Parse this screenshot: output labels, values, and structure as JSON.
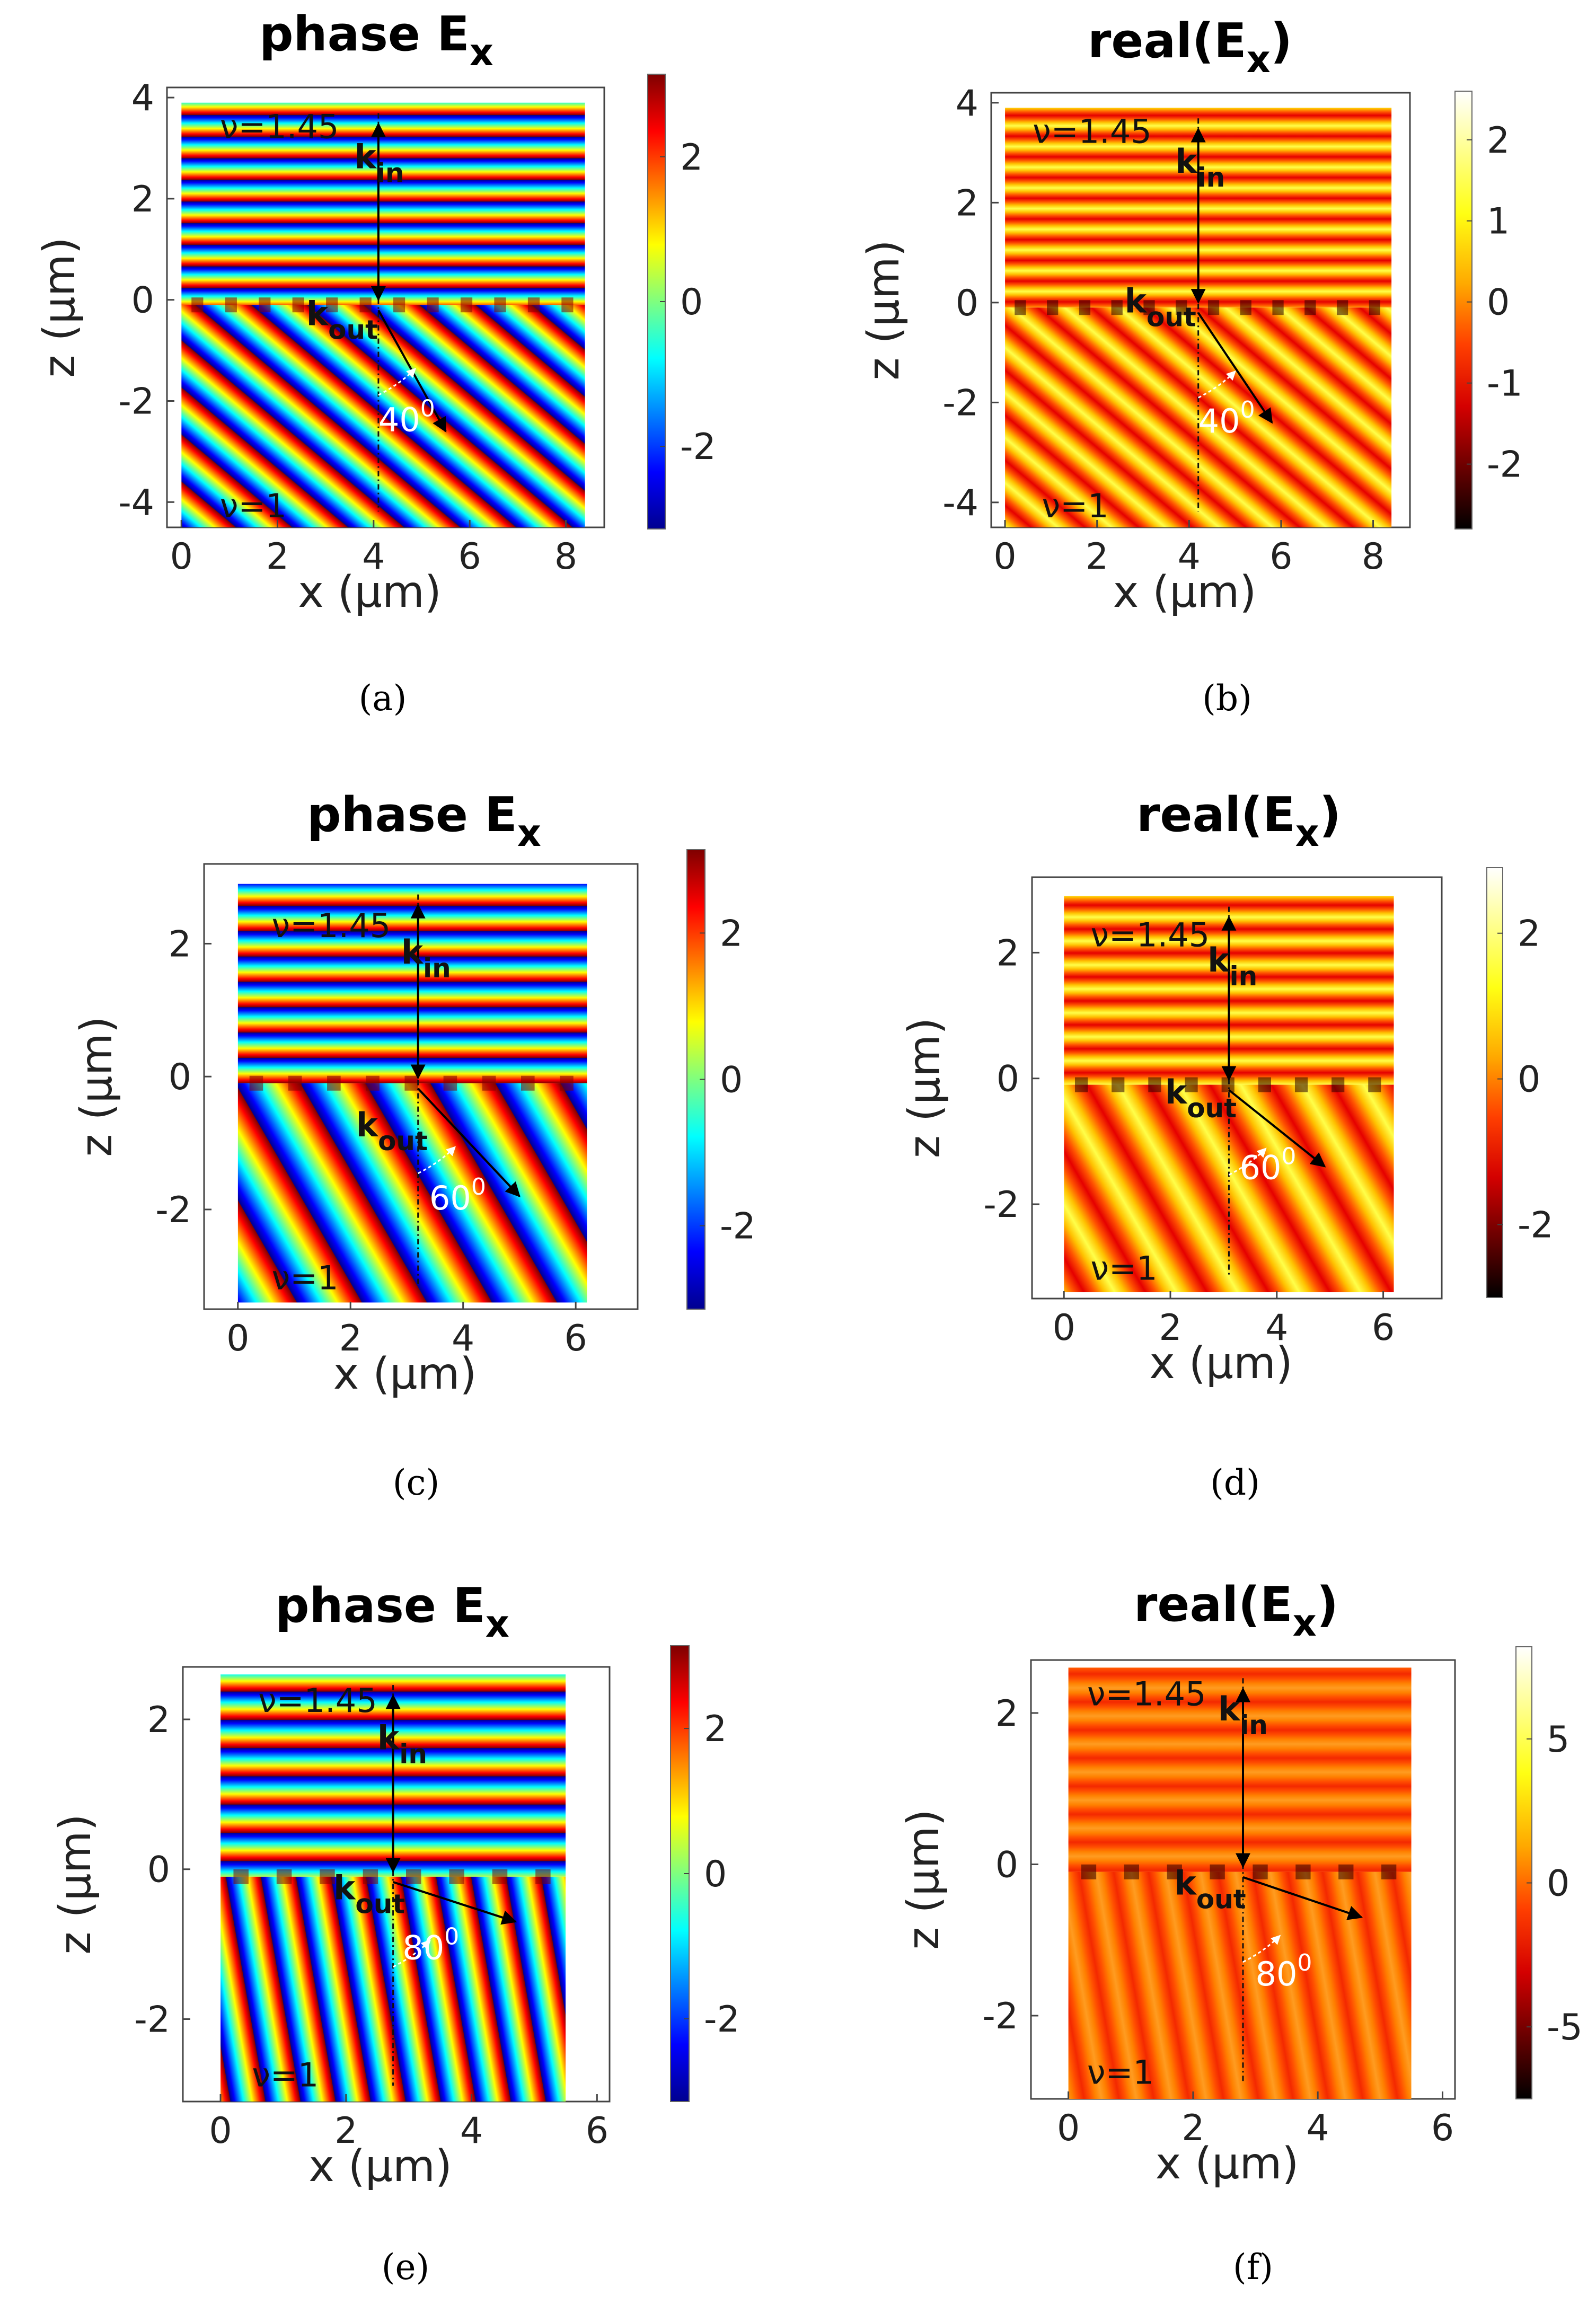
{
  "colormaps": {
    "jet": [
      "#00008f",
      "#0000ff",
      "#007fff",
      "#00ffff",
      "#7fff7f",
      "#ffff00",
      "#ff7f00",
      "#ff0000",
      "#7f0000"
    ],
    "hot": [
      "#000000",
      "#6a0000",
      "#d40000",
      "#ff3f00",
      "#ffa900",
      "#ffff13",
      "#ffff89",
      "#ffffff"
    ]
  },
  "chart_data": [
    {
      "id": "a",
      "caption": "(a)",
      "type": "heatmap",
      "colormap": "jet",
      "title_main": "phase E",
      "title_sub": "x",
      "xlabel": "x (μm)",
      "ylabel": "z (μm)",
      "xlim": [
        -0.3,
        8.8
      ],
      "ylim": [
        -4.5,
        4.2
      ],
      "data_x": [
        0,
        8.4
      ],
      "data_y": [
        -4.5,
        3.9
      ],
      "xticks": [
        0,
        2,
        4,
        6,
        8
      ],
      "yticks": [
        -4,
        -2,
        0,
        2,
        4
      ],
      "clim": [
        -3.14,
        3.14
      ],
      "cticks": [
        -2,
        0,
        2
      ],
      "kin_x": 4.1,
      "kout_end": [
        5.5,
        -2.6
      ],
      "interface_z": -0.1,
      "top_period": 0.45,
      "top_offset": 0.1,
      "stripe_dir": 40,
      "stripe_period": 0.75,
      "labels": {
        "n_top": "ν=1.45",
        "n_bottom": "ν=1",
        "k_in": "k",
        "k_in_sub": "in",
        "k_out": "k",
        "k_out_sub": "out",
        "angle": "40",
        "angle_sup": "0"
      },
      "label_pos": {
        "n_top": [
          0.8,
          3.2
        ],
        "n_bottom": [
          0.8,
          -4.3
        ],
        "k_in": [
          3.6,
          2.6
        ],
        "k_out": [
          2.6,
          -0.5
        ],
        "angle": [
          4.1,
          -2.6
        ]
      }
    },
    {
      "id": "b",
      "caption": "(b)",
      "type": "heatmap",
      "colormap": "hot",
      "title_main": "real(E",
      "title_sub": "x",
      "title_end": ")",
      "xlabel": "x (μm)",
      "ylabel": "z (μm)",
      "xlim": [
        -0.3,
        8.8
      ],
      "ylim": [
        -4.5,
        4.2
      ],
      "data_x": [
        0,
        8.4
      ],
      "data_y": [
        -4.5,
        3.9
      ],
      "xticks": [
        0,
        2,
        4,
        6,
        8
      ],
      "yticks": [
        -4,
        -2,
        0,
        2,
        4
      ],
      "clim": [
        -2.8,
        2.6
      ],
      "cticks": [
        -2,
        -1,
        0,
        1,
        2
      ],
      "kin_x": 4.2,
      "kout_end": [
        5.8,
        -2.4
      ],
      "interface_z": -0.1,
      "top_period": 0.45,
      "top_offset": 0.1,
      "stripe_dir": 40,
      "stripe_period": 0.75,
      "labels": {
        "n_top": "ν=1.45",
        "n_bottom": "ν=1",
        "k_in": "k",
        "k_in_sub": "in",
        "k_out": "k",
        "k_out_sub": "out",
        "angle": "40",
        "angle_sup": "0"
      },
      "label_pos": {
        "n_top": [
          0.6,
          3.2
        ],
        "n_bottom": [
          0.8,
          -4.3
        ],
        "k_in": [
          3.7,
          2.6
        ],
        "k_out": [
          2.6,
          -0.2
        ],
        "angle": [
          4.2,
          -2.6
        ]
      }
    },
    {
      "id": "c",
      "caption": "(c)",
      "type": "heatmap",
      "colormap": "jet",
      "title_main": "phase E",
      "title_sub": "x",
      "xlabel": "x (μm)",
      "ylabel": "z (μm)",
      "xlim": [
        -0.6,
        7.1
      ],
      "ylim": [
        -3.5,
        3.2
      ],
      "data_x": [
        0,
        6.2
      ],
      "data_y": [
        -3.4,
        2.9
      ],
      "xticks": [
        0,
        2,
        4,
        6
      ],
      "yticks": [
        -2,
        0,
        2
      ],
      "clim": [
        -3.14,
        3.14
      ],
      "cticks": [
        -2,
        0,
        2
      ],
      "kin_x": 3.2,
      "kout_end": [
        5.0,
        -1.8
      ],
      "interface_z": -0.1,
      "top_period": 0.45,
      "top_offset": 0.0,
      "stripe_dir": 60,
      "stripe_period": 1.0,
      "labels": {
        "n_top": "ν=1.45",
        "n_bottom": "ν=1",
        "k_in": "k",
        "k_in_sub": "in",
        "k_out": "k",
        "k_out_sub": "out",
        "angle": "60",
        "angle_sup": "0"
      },
      "label_pos": {
        "n_top": [
          0.6,
          2.1
        ],
        "n_bottom": [
          0.6,
          -3.2
        ],
        "k_in": [
          2.9,
          1.7
        ],
        "k_out": [
          2.1,
          -0.9
        ],
        "angle": [
          3.4,
          -2.0
        ]
      }
    },
    {
      "id": "d",
      "caption": "(d)",
      "type": "heatmap",
      "colormap": "hot",
      "title_main": "real(E",
      "title_sub": "x",
      "title_end": ")",
      "xlabel": "x (μm)",
      "ylabel": "z (μm)",
      "xlim": [
        -0.6,
        7.1
      ],
      "ylim": [
        -3.5,
        3.2
      ],
      "data_x": [
        0,
        6.2
      ],
      "data_y": [
        -3.4,
        2.9
      ],
      "xticks": [
        0,
        2,
        4,
        6
      ],
      "yticks": [
        -2,
        0,
        2
      ],
      "clim": [
        -3.0,
        2.9
      ],
      "cticks": [
        -2,
        0,
        2
      ],
      "kin_x": 3.1,
      "kout_end": [
        4.9,
        -1.4
      ],
      "interface_z": -0.1,
      "top_period": 0.45,
      "top_offset": 0.0,
      "stripe_dir": 60,
      "stripe_period": 1.0,
      "labels": {
        "n_top": "ν=1.45",
        "n_bottom": "ν=1",
        "k_in": "k",
        "k_in_sub": "in",
        "k_out": "k",
        "k_out_sub": "out",
        "angle": "60",
        "angle_sup": "0"
      },
      "label_pos": {
        "n_top": [
          0.5,
          2.1
        ],
        "n_bottom": [
          0.5,
          -3.2
        ],
        "k_in": [
          2.7,
          1.7
        ],
        "k_out": [
          1.9,
          -0.4
        ],
        "angle": [
          3.3,
          -1.6
        ]
      }
    },
    {
      "id": "e",
      "caption": "(e)",
      "type": "heatmap",
      "colormap": "jet",
      "title_main": "phase E",
      "title_sub": "x",
      "xlabel": "x (μm)",
      "ylabel": "z (μm)",
      "xlim": [
        -0.6,
        6.2
      ],
      "ylim": [
        -3.1,
        2.7
      ],
      "data_x": [
        0,
        5.5
      ],
      "data_y": [
        -3.1,
        2.6
      ],
      "xticks": [
        0,
        2,
        4,
        6
      ],
      "yticks": [
        -2,
        0,
        2
      ],
      "clim": [
        -3.14,
        3.14
      ],
      "cticks": [
        -2,
        0,
        2
      ],
      "kin_x": 2.75,
      "kout_end": [
        4.7,
        -0.7
      ],
      "interface_z": -0.1,
      "top_period": 0.45,
      "top_offset": 0.2,
      "stripe_dir": 80,
      "stripe_period": 0.55,
      "labels": {
        "n_top": "ν=1.45",
        "n_bottom": "ν=1",
        "k_in": "k",
        "k_in_sub": "in",
        "k_out": "k",
        "k_out_sub": "out",
        "angle": "80",
        "angle_sup": "0"
      },
      "label_pos": {
        "n_top": [
          0.6,
          2.1
        ],
        "n_bottom": [
          0.5,
          -2.9
        ],
        "k_in": [
          2.5,
          1.6
        ],
        "k_out": [
          1.8,
          -0.4
        ],
        "angle": [
          2.9,
          -1.2
        ]
      }
    },
    {
      "id": "f",
      "caption": "(f)",
      "type": "heatmap",
      "colormap": "hot",
      "title_main": "real(E",
      "title_sub": "x",
      "title_end": ")",
      "xlabel": "x (μm)",
      "ylabel": "z (μm)",
      "xlim": [
        -0.6,
        6.2
      ],
      "ylim": [
        -3.1,
        2.7
      ],
      "data_x": [
        0,
        5.5
      ],
      "data_y": [
        -3.1,
        2.6
      ],
      "xticks": [
        0,
        2,
        4,
        6
      ],
      "yticks": [
        -2,
        0,
        2
      ],
      "clim": [
        -7.5,
        8.2
      ],
      "cticks": [
        -5,
        0,
        5
      ],
      "kin_x": 2.8,
      "kout_end": [
        4.7,
        -0.7
      ],
      "interface_z": -0.1,
      "top_period": 0.45,
      "top_offset": 0.2,
      "stripe_dir": 80,
      "stripe_period": 0.55,
      "labels": {
        "n_top": "ν=1.45",
        "n_bottom": "ν=1",
        "k_in": "k",
        "k_in_sub": "in",
        "k_out": "k",
        "k_out_sub": "out",
        "angle": "80",
        "angle_sup": "0"
      },
      "label_pos": {
        "n_top": [
          0.3,
          2.1
        ],
        "n_bottom": [
          0.3,
          -2.9
        ],
        "k_in": [
          2.4,
          1.9
        ],
        "k_out": [
          1.7,
          -0.4
        ],
        "angle": [
          3.0,
          -1.6
        ]
      }
    }
  ]
}
